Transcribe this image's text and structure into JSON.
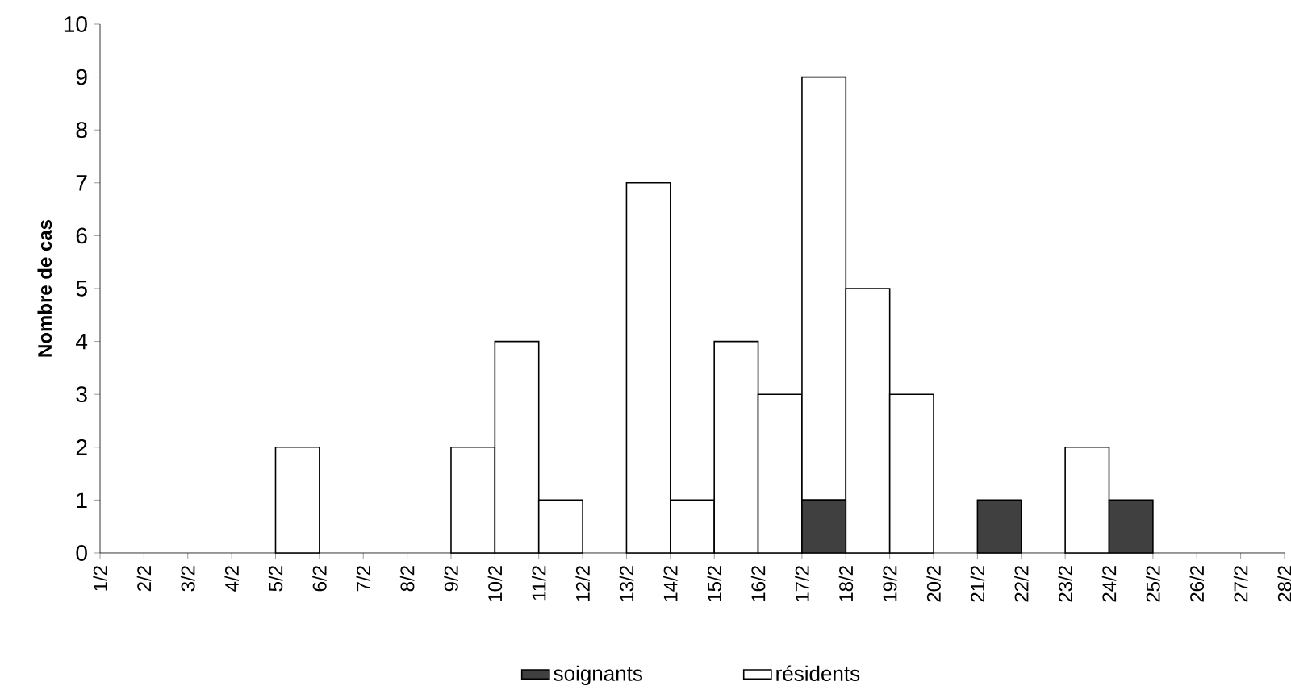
{
  "chart_data": {
    "type": "bar",
    "stacked": true,
    "ylabel": "Nombre de cas",
    "categories": [
      "1/2",
      "2/2",
      "3/2",
      "4/2",
      "5/2",
      "6/2",
      "7/2",
      "8/2",
      "9/2",
      "10/2",
      "11/2",
      "12/2",
      "13/2",
      "14/2",
      "15/2",
      "16/2",
      "17/2",
      "18/2",
      "19/2",
      "20/2",
      "21/2",
      "22/2",
      "23/2",
      "24/2",
      "25/2",
      "26/2",
      "27/2",
      "28/2"
    ],
    "series": [
      {
        "name": "soignants",
        "color": "#404040",
        "values": [
          0,
          0,
          0,
          0,
          0,
          0,
          0,
          0,
          0,
          0,
          0,
          0,
          0,
          0,
          0,
          0,
          1,
          0,
          0,
          0,
          1,
          0,
          0,
          1,
          0,
          0,
          0,
          0
        ]
      },
      {
        "name": "résidents",
        "color": "#ffffff",
        "values": [
          0,
          0,
          0,
          0,
          2,
          0,
          0,
          0,
          2,
          4,
          1,
          0,
          7,
          1,
          4,
          3,
          8,
          5,
          3,
          0,
          0,
          0,
          2,
          0,
          0,
          0,
          0,
          0
        ]
      }
    ],
    "ylim": [
      0,
      10
    ],
    "yticks": [
      0,
      1,
      2,
      3,
      4,
      5,
      6,
      7,
      8,
      9,
      10
    ],
    "grid": false,
    "legend": "bottom"
  }
}
